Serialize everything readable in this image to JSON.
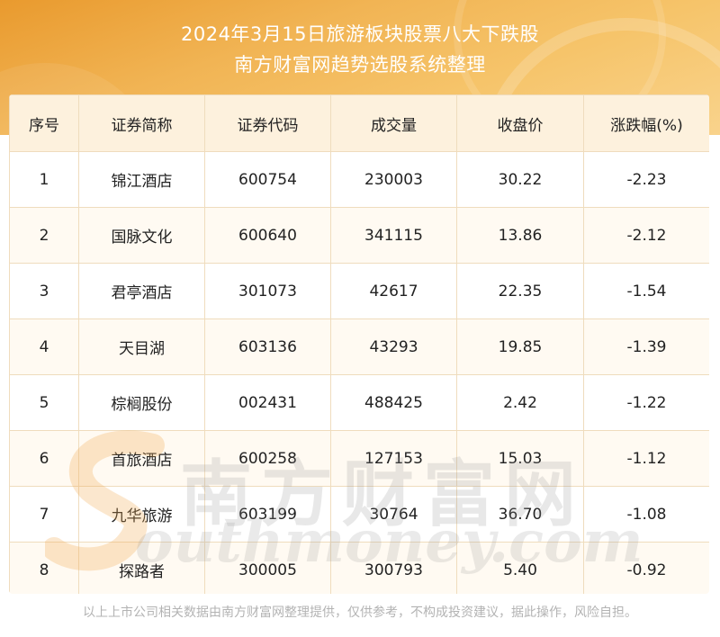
{
  "title_line1": "2024年3月15日旅游板块股票八大下跌股",
  "title_line2": "南方财富网趋势选股系统整理",
  "headers": [
    "序号",
    "证券简称",
    "证券代码",
    "成交量",
    "收盘价",
    "涨跌幅(%)"
  ],
  "rows": [
    [
      "1",
      "锦江酒店",
      "600754",
      "230003",
      "30.22",
      "-2.23"
    ],
    [
      "2",
      "国脉文化",
      "600640",
      "341115",
      "13.86",
      "-2.12"
    ],
    [
      "3",
      "君亭酒店",
      "301073",
      "42617",
      "22.35",
      "-1.54"
    ],
    [
      "4",
      "天目湖",
      "603136",
      "43293",
      "19.85",
      "-1.39"
    ],
    [
      "5",
      "棕榈股份",
      "002431",
      "488425",
      "2.42",
      "-1.22"
    ],
    [
      "6",
      "首旅酒店",
      "600258",
      "127153",
      "15.03",
      "-1.12"
    ],
    [
      "7",
      "九华旅游",
      "603199",
      "30764",
      "36.70",
      "-1.08"
    ],
    [
      "8",
      "探路者",
      "300005",
      "300793",
      "5.40",
      "-0.92"
    ]
  ],
  "watermark_cn": "南方财富网",
  "watermark_en": "outhmoney.com",
  "footer": "以上上市公司相关数据由南方财富网整理提供，仅供参考，不构成投资建议，据此操作，风险自担。",
  "colors": {
    "header_bg": "#f1b454",
    "table_header_bg": "#fdf1dd",
    "border": "#efdcbd"
  }
}
